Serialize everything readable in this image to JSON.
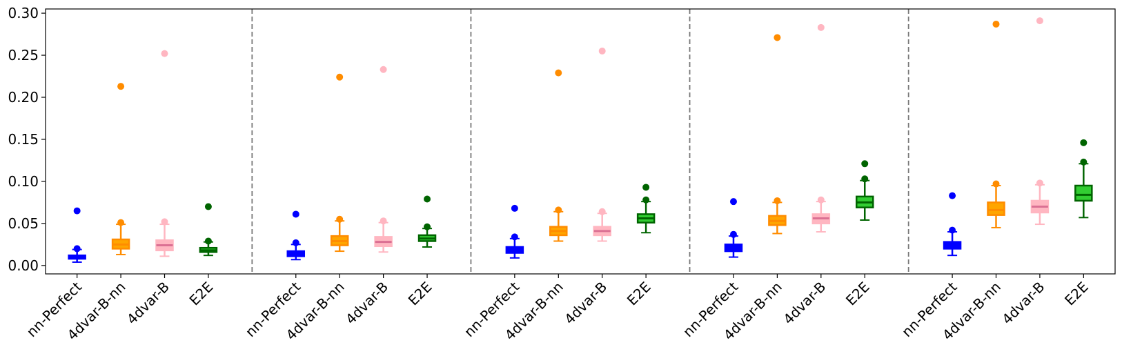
{
  "chart_data": {
    "type": "box",
    "title": "",
    "xlabel": "",
    "ylabel": "",
    "ylim": [
      -0.01,
      0.305
    ],
    "yticks": [
      0.0,
      0.05,
      0.1,
      0.15,
      0.2,
      0.25,
      0.3
    ],
    "ytick_labels": [
      "0.00",
      "0.05",
      "0.10",
      "0.15",
      "0.20",
      "0.25",
      "0.30"
    ],
    "categories": [
      "nn-Perfect",
      "4dvar-B-nn",
      "4dvar-B",
      "E2E"
    ],
    "category_colors": {
      "nn-Perfect": "#0000ff",
      "4dvar-B-nn": "#ff8c00",
      "4dvar-B": "#ffb6c1",
      "E2E": "#006400"
    },
    "category_fills": {
      "nn-Perfect": "#0000ff",
      "4dvar-B-nn": "#ffa500",
      "4dvar-B": "#ffb6c1",
      "E2E": "#32cd32"
    },
    "median_colors": {
      "nn-Perfect": "#0000ff",
      "4dvar-B-nn": "#ff8c00",
      "4dvar-B": "#db7093",
      "E2E": "#006400"
    },
    "group_separator": "dashed-vertical-line",
    "groups": [
      {
        "boxes": [
          {
            "category": "nn-Perfect",
            "whislo": 0.004,
            "q1": 0.008,
            "median": 0.01,
            "q3": 0.012,
            "whishi": 0.019,
            "mean": 0.02,
            "outliers": [
              0.065
            ]
          },
          {
            "category": "4dvar-B-nn",
            "whislo": 0.013,
            "q1": 0.02,
            "median": 0.025,
            "q3": 0.031,
            "whishi": 0.049,
            "mean": 0.051,
            "outliers": [
              0.213
            ]
          },
          {
            "category": "4dvar-B",
            "whislo": 0.011,
            "q1": 0.018,
            "median": 0.024,
            "q3": 0.03,
            "whishi": 0.049,
            "mean": 0.052,
            "outliers": [
              0.252
            ]
          },
          {
            "category": "E2E",
            "whislo": 0.012,
            "q1": 0.016,
            "median": 0.018,
            "q3": 0.021,
            "whishi": 0.028,
            "mean": 0.029,
            "outliers": [
              0.07
            ]
          }
        ]
      },
      {
        "boxes": [
          {
            "category": "nn-Perfect",
            "whislo": 0.007,
            "q1": 0.011,
            "median": 0.014,
            "q3": 0.017,
            "whishi": 0.025,
            "mean": 0.027,
            "outliers": [
              0.061
            ]
          },
          {
            "category": "4dvar-B-nn",
            "whislo": 0.017,
            "q1": 0.024,
            "median": 0.029,
            "q3": 0.035,
            "whishi": 0.053,
            "mean": 0.055,
            "outliers": [
              0.224
            ]
          },
          {
            "category": "4dvar-B",
            "whislo": 0.016,
            "q1": 0.023,
            "median": 0.028,
            "q3": 0.034,
            "whishi": 0.051,
            "mean": 0.053,
            "outliers": [
              0.233
            ]
          },
          {
            "category": "E2E",
            "whislo": 0.022,
            "q1": 0.029,
            "median": 0.032,
            "q3": 0.036,
            "whishi": 0.044,
            "mean": 0.046,
            "outliers": [
              0.079
            ]
          }
        ]
      },
      {
        "boxes": [
          {
            "category": "nn-Perfect",
            "whislo": 0.009,
            "q1": 0.015,
            "median": 0.018,
            "q3": 0.022,
            "whishi": 0.032,
            "mean": 0.034,
            "outliers": [
              0.068
            ]
          },
          {
            "category": "4dvar-B-nn",
            "whislo": 0.029,
            "q1": 0.036,
            "median": 0.041,
            "q3": 0.046,
            "whishi": 0.064,
            "mean": 0.066,
            "outliers": [
              0.229
            ]
          },
          {
            "category": "4dvar-B",
            "whislo": 0.029,
            "q1": 0.036,
            "median": 0.041,
            "q3": 0.046,
            "whishi": 0.062,
            "mean": 0.064,
            "outliers": [
              0.255
            ]
          },
          {
            "category": "E2E",
            "whislo": 0.039,
            "q1": 0.051,
            "median": 0.056,
            "q3": 0.061,
            "whishi": 0.076,
            "mean": 0.078,
            "outliers": [
              0.093
            ]
          }
        ]
      },
      {
        "boxes": [
          {
            "category": "nn-Perfect",
            "whislo": 0.01,
            "q1": 0.017,
            "median": 0.02,
            "q3": 0.025,
            "whishi": 0.035,
            "mean": 0.037,
            "outliers": [
              0.076
            ]
          },
          {
            "category": "4dvar-B-nn",
            "whislo": 0.038,
            "q1": 0.048,
            "median": 0.053,
            "q3": 0.059,
            "whishi": 0.075,
            "mean": 0.077,
            "outliers": [
              0.271
            ]
          },
          {
            "category": "4dvar-B",
            "whislo": 0.04,
            "q1": 0.05,
            "median": 0.056,
            "q3": 0.061,
            "whishi": 0.076,
            "mean": 0.078,
            "outliers": [
              0.283
            ]
          },
          {
            "category": "E2E",
            "whislo": 0.054,
            "q1": 0.069,
            "median": 0.075,
            "q3": 0.082,
            "whishi": 0.101,
            "mean": 0.103,
            "outliers": [
              0.121
            ]
          }
        ]
      },
      {
        "boxes": [
          {
            "category": "nn-Perfect",
            "whislo": 0.012,
            "q1": 0.02,
            "median": 0.024,
            "q3": 0.028,
            "whishi": 0.04,
            "mean": 0.042,
            "outliers": [
              0.083
            ]
          },
          {
            "category": "4dvar-B-nn",
            "whislo": 0.045,
            "q1": 0.06,
            "median": 0.066,
            "q3": 0.075,
            "whishi": 0.095,
            "mean": 0.097,
            "outliers": [
              0.287
            ]
          },
          {
            "category": "4dvar-B",
            "whislo": 0.049,
            "q1": 0.063,
            "median": 0.07,
            "q3": 0.077,
            "whishi": 0.096,
            "mean": 0.098,
            "outliers": [
              0.291
            ]
          },
          {
            "category": "E2E",
            "whislo": 0.057,
            "q1": 0.077,
            "median": 0.084,
            "q3": 0.095,
            "whishi": 0.121,
            "mean": 0.123,
            "outliers": [
              0.146
            ]
          }
        ]
      }
    ]
  }
}
